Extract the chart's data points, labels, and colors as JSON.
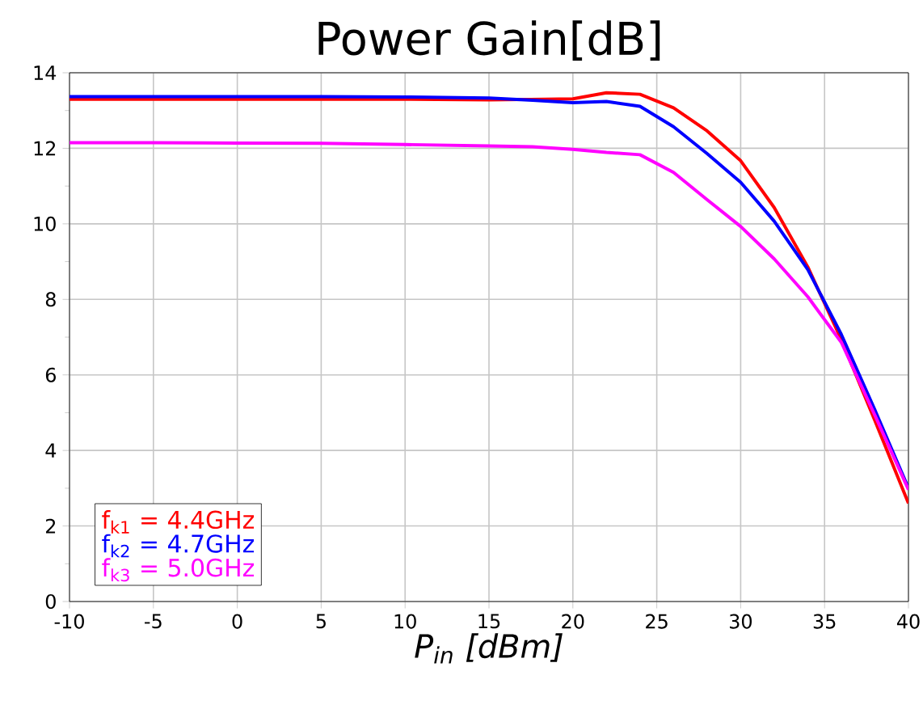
{
  "chart_data": {
    "type": "line",
    "title": "Power Gain[dB]",
    "xlabel": "P$_{in}$ [dBm]",
    "x": [
      -10,
      -5,
      0,
      5,
      10,
      15,
      17.6,
      20,
      22,
      24,
      26,
      28,
      30,
      32,
      34,
      36,
      38,
      40
    ],
    "series": [
      {
        "name": "f$_{k1}$ = 4.4GHz",
        "color": "#ff0000",
        "values": [
          13.3,
          13.3,
          13.3,
          13.3,
          13.3,
          13.28,
          null,
          13.31,
          13.47,
          13.43,
          13.07,
          12.46,
          11.67,
          10.43,
          8.86,
          6.93,
          4.79,
          2.6
        ]
      },
      {
        "name": "f$_{k2}$ = 4.7GHz",
        "color": "#0000ff",
        "values": [
          13.37,
          13.37,
          13.37,
          13.37,
          13.36,
          13.33,
          13.27,
          13.21,
          13.24,
          13.11,
          12.57,
          11.86,
          11.1,
          10.07,
          8.79,
          7.07,
          5.07,
          3.0
        ]
      },
      {
        "name": "f$_{k3}$ = 5.0GHz",
        "color": "#ff00ff",
        "values": [
          12.15,
          12.15,
          12.14,
          12.13,
          12.1,
          12.06,
          12.04,
          11.97,
          11.89,
          11.83,
          11.36,
          10.64,
          9.93,
          9.07,
          8.07,
          6.86,
          4.93,
          2.96
        ]
      }
    ],
    "xlim": [
      -10,
      40
    ],
    "ylim": [
      0,
      14
    ],
    "xticks": [
      -10,
      -5,
      0,
      5,
      10,
      15,
      20,
      25,
      30,
      35,
      40
    ],
    "yticks": [
      0,
      2,
      4,
      6,
      8,
      10,
      12,
      14
    ],
    "grid": true,
    "legend": "bottom left",
    "marker": "none",
    "line_style": "solid"
  }
}
